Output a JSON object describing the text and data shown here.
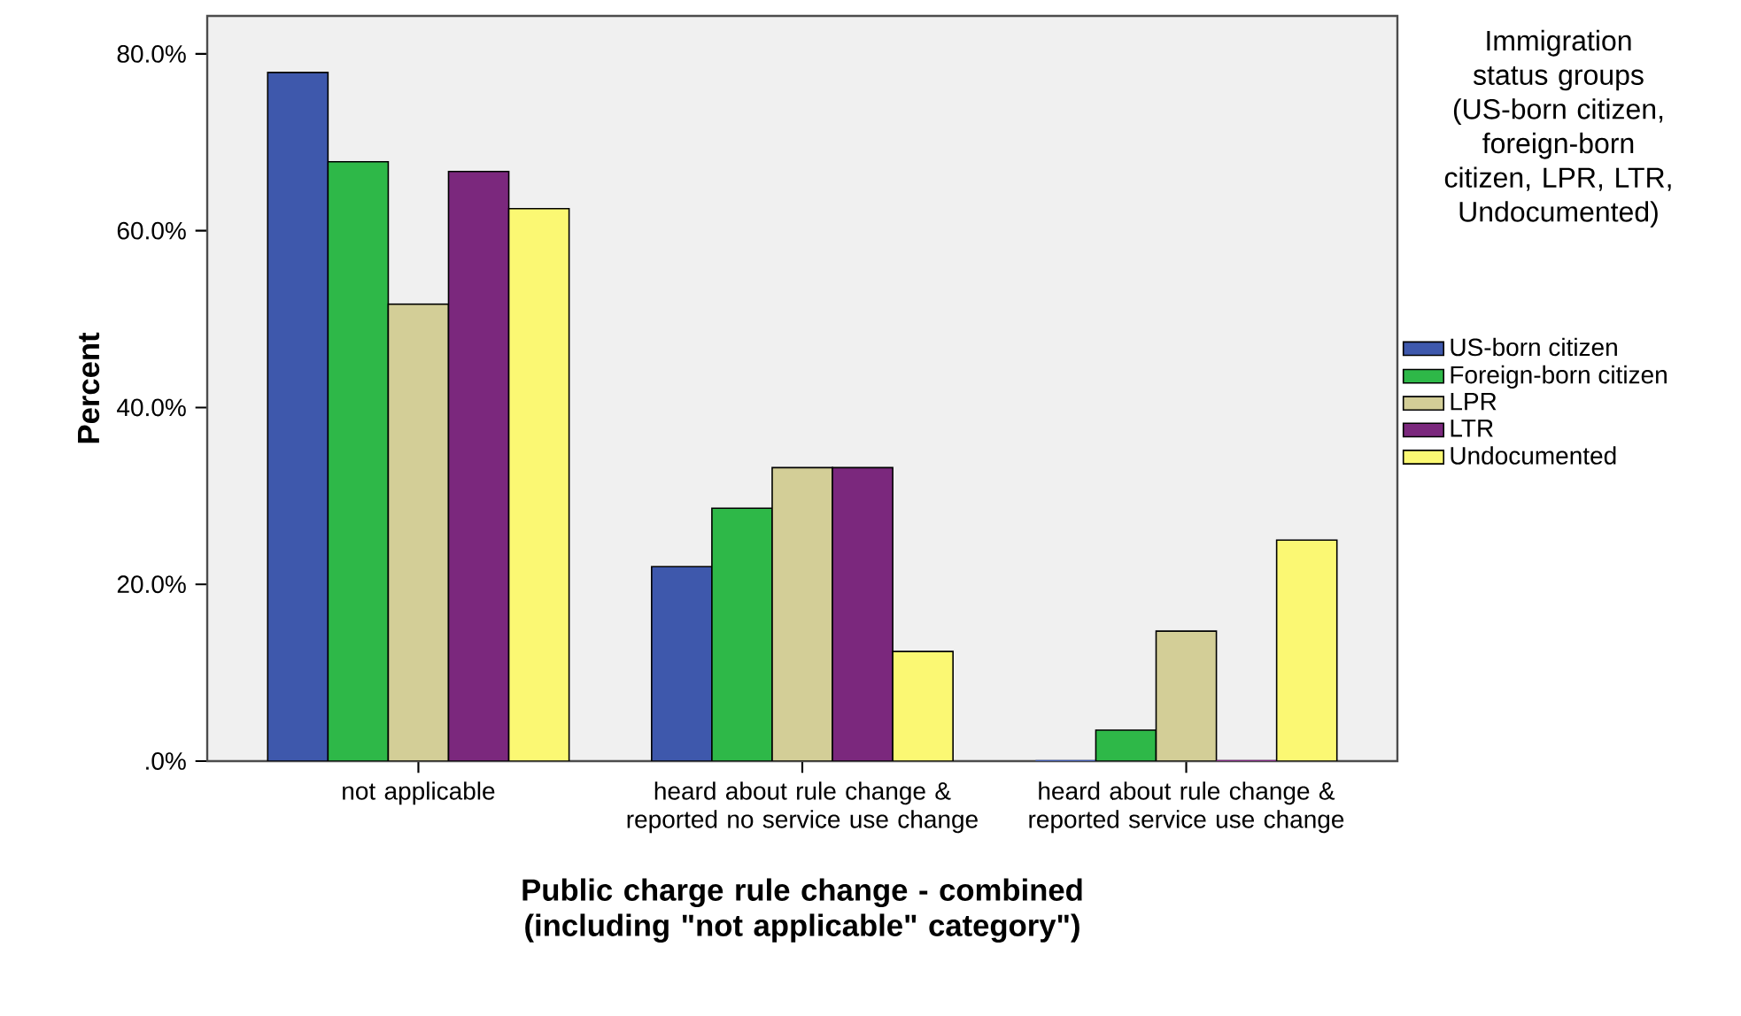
{
  "chart_data": {
    "type": "bar",
    "categories": [
      "not applicable",
      "heard about rule change & reported no service use change",
      "heard about rule change & reported service use change"
    ],
    "series": [
      {
        "name": "US-born citizen",
        "color": "#3e58ac",
        "values": [
          77.9,
          22.0,
          0
        ]
      },
      {
        "name": "Foreign-born citizen",
        "color": "#2eb848",
        "values": [
          67.8,
          28.6,
          3.5
        ]
      },
      {
        "name": "LPR",
        "color": "#d3ce97",
        "values": [
          51.7,
          33.2,
          14.7
        ]
      },
      {
        "name": "LTR",
        "color": "#7b287d",
        "values": [
          66.7,
          33.2,
          0
        ]
      },
      {
        "name": "Undocumented",
        "color": "#fbf873",
        "values": [
          62.5,
          12.4,
          25.0
        ]
      }
    ],
    "xlabel": "Public charge rule change - combined (including \"not applicable\" category\")",
    "ylabel": "Percent",
    "legend_title": "Immigration status groups (US-born citizen, foreign-born citizen, LPR, LTR, Undocumented)",
    "legend": "right",
    "ylim": [
      0,
      84.3
    ],
    "yticks": [
      {
        "value": 0,
        "label": ".0%"
      },
      {
        "value": 20,
        "label": "20.0%"
      },
      {
        "value": 40,
        "label": "40.0%"
      },
      {
        "value": 60,
        "label": "60.0%"
      },
      {
        "value": 80,
        "label": "80.0%"
      }
    ]
  }
}
